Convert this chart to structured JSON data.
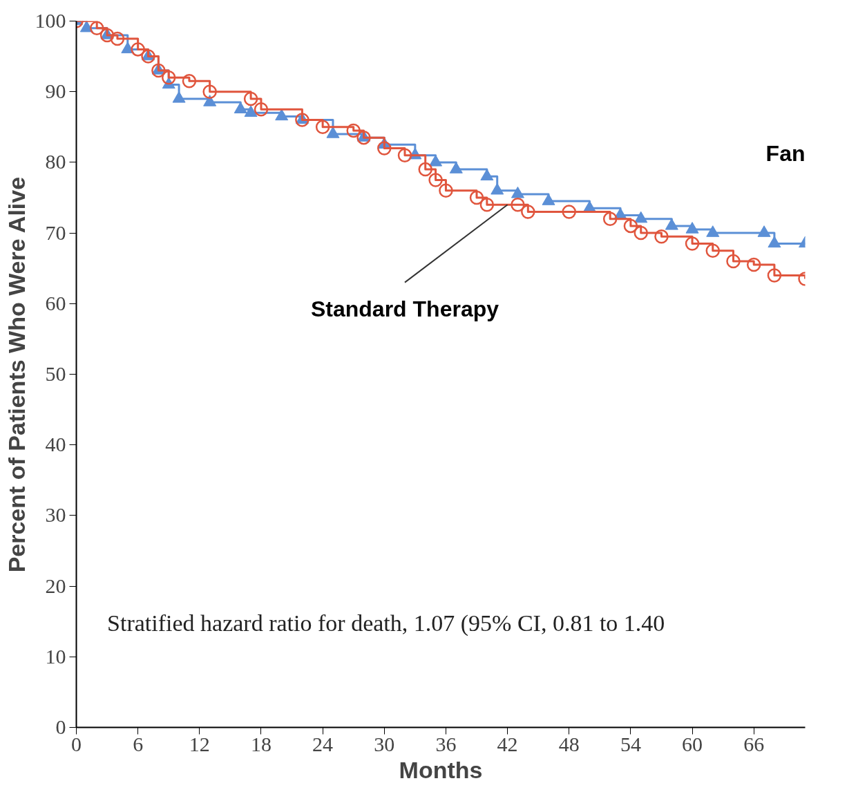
{
  "chart_data": {
    "type": "step",
    "xlabel": "Months",
    "ylabel": "Percent of Patients Who Were Alive",
    "xlim": [
      0,
      71
    ],
    "ylim": [
      0,
      100
    ],
    "xticks": [
      0,
      6,
      12,
      18,
      24,
      30,
      36,
      42,
      48,
      54,
      60,
      66
    ],
    "yticks": [
      0,
      10,
      20,
      30,
      40,
      50,
      60,
      70,
      80,
      90,
      100
    ],
    "grid": false,
    "line_style": "solid",
    "series": [
      {
        "name": "Fan",
        "color": "#5b8fd6",
        "marker": "triangle",
        "x": [
          0,
          1,
          3,
          5,
          7,
          8,
          9,
          10,
          13,
          16,
          17,
          20,
          22,
          25,
          28,
          30,
          33,
          35,
          37,
          40,
          41,
          43,
          46,
          50,
          53,
          55,
          58,
          60,
          62,
          67,
          68,
          71
        ],
        "values": [
          100,
          99,
          98,
          96,
          95,
          93,
          91,
          89,
          88.5,
          87.5,
          87,
          86.5,
          86,
          84,
          83.5,
          82.5,
          81,
          80,
          79,
          78,
          76,
          75.5,
          74.5,
          73.5,
          72.5,
          72,
          71,
          70.5,
          70,
          70,
          68.5,
          68.5
        ]
      },
      {
        "name": "Standard Therapy",
        "color": "#e0553d",
        "marker": "circle",
        "x": [
          0,
          2,
          3,
          4,
          6,
          7,
          8,
          9,
          11,
          13,
          17,
          18,
          22,
          24,
          27,
          28,
          30,
          32,
          34,
          35,
          36,
          39,
          40,
          43,
          44,
          48,
          52,
          54,
          55,
          57,
          60,
          62,
          64,
          66,
          68,
          71
        ],
        "values": [
          100,
          99,
          98,
          97.5,
          96,
          95,
          93,
          92,
          91.5,
          90,
          89,
          87.5,
          86,
          85,
          84.5,
          83.5,
          82,
          81,
          79,
          77.5,
          76,
          75,
          74,
          74,
          73,
          73,
          72,
          71,
          70,
          69.5,
          68.5,
          67.5,
          66,
          65.5,
          64,
          63.5
        ]
      }
    ],
    "annotations": [
      "Stratified hazard ratio for death, 1.07 (95% CI, 0.81 to 1.40"
    ]
  }
}
